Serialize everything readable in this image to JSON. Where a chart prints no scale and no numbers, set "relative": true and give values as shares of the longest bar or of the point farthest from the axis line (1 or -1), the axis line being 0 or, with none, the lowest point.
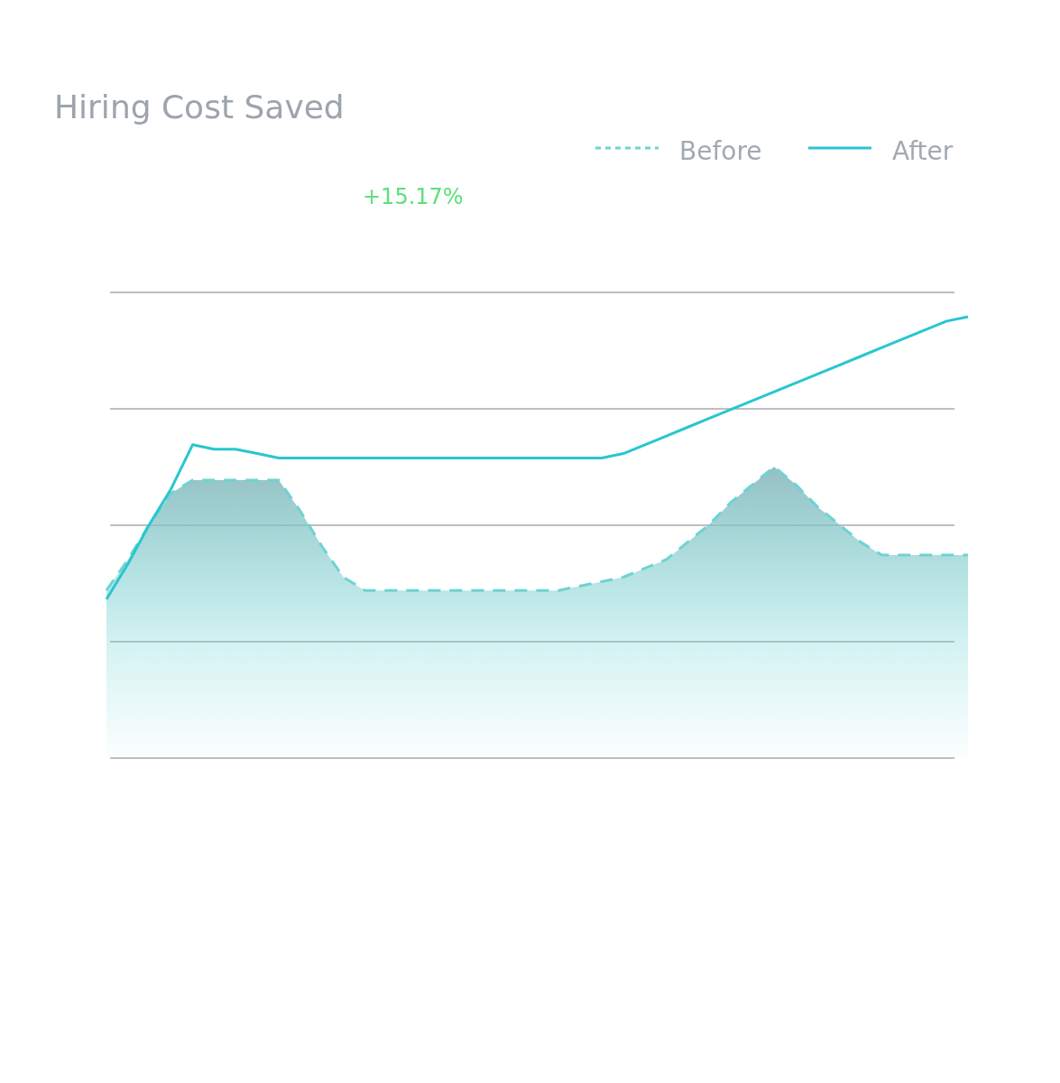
{
  "chart_data": {
    "type": "line",
    "title": "Hiring Cost Saved",
    "annotations": [
      "+15.17%"
    ],
    "relative": true,
    "grid": "y",
    "legend": "top right",
    "categories": [
      null,
      null,
      null,
      null,
      null,
      null,
      null,
      null,
      null,
      null,
      null,
      null,
      null,
      null,
      null,
      null,
      null,
      null,
      null,
      null,
      null,
      null,
      null,
      null,
      null,
      null,
      null,
      null,
      null,
      null,
      null,
      null,
      null,
      null,
      null,
      null,
      null,
      null,
      null,
      null,
      null
    ],
    "series": [
      {
        "name": "Before",
        "type": "area",
        "line_style": "dashed",
        "color": "#6dd3d3",
        "values": [
          0.38,
          0.45,
          0.53,
          0.6,
          0.63,
          0.63,
          0.63,
          0.63,
          0.63,
          0.56,
          0.48,
          0.41,
          0.38,
          0.38,
          0.38,
          0.38,
          0.38,
          0.38,
          0.38,
          0.38,
          0.38,
          0.38,
          0.39,
          0.4,
          0.41,
          0.43,
          0.45,
          0.49,
          0.53,
          0.58,
          0.62,
          0.66,
          0.62,
          0.57,
          0.53,
          0.49,
          0.46,
          0.46,
          0.46,
          0.46,
          0.46
        ]
      },
      {
        "name": "After",
        "type": "line",
        "line_style": "solid",
        "color": "#29c6cf",
        "values": [
          0.36,
          0.44,
          0.53,
          0.61,
          0.71,
          0.7,
          0.7,
          0.69,
          0.68,
          0.68,
          0.68,
          0.68,
          0.68,
          0.68,
          0.68,
          0.68,
          0.68,
          0.68,
          0.68,
          0.68,
          0.68,
          0.68,
          0.68,
          0.68,
          0.69,
          0.71,
          0.73,
          0.75,
          0.77,
          0.79,
          0.81,
          0.83,
          0.85,
          0.87,
          0.89,
          0.91,
          0.93,
          0.95,
          0.97,
          0.99,
          1
        ]
      }
    ]
  }
}
